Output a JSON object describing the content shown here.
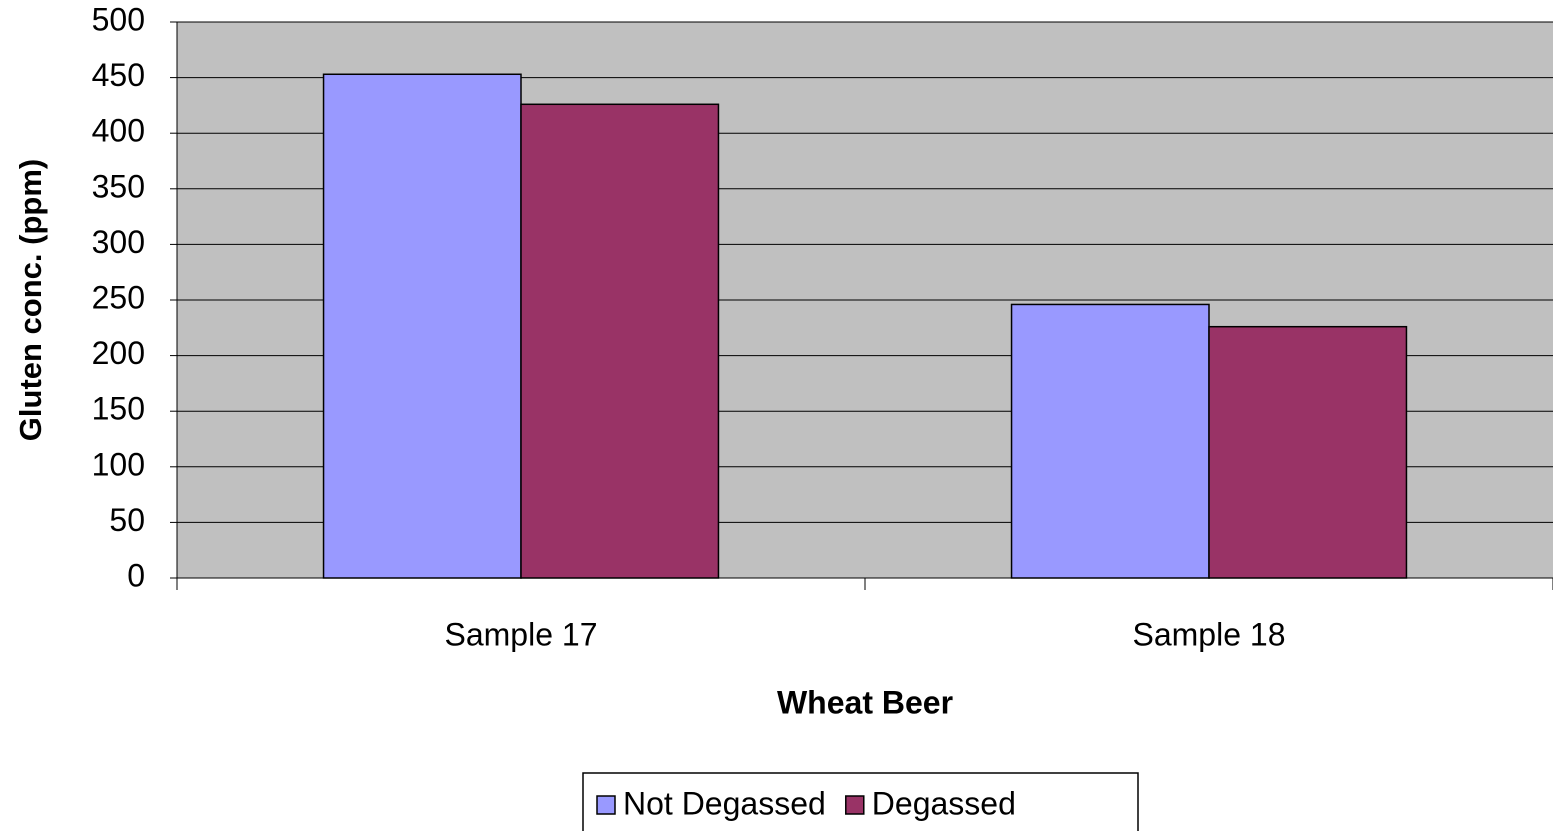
{
  "chart_data": {
    "type": "bar",
    "x_label": "Wheat Beer",
    "y_label": "Gluten conc. (ppm)",
    "categories": [
      "Sample 17",
      "Sample 18"
    ],
    "series": [
      {
        "name": "Not Degassed",
        "color": "#9999ff",
        "values": [
          453,
          246
        ]
      },
      {
        "name": "Degassed",
        "color": "#993366",
        "values": [
          426,
          226
        ]
      }
    ],
    "ylim": [
      0,
      500
    ],
    "yticks": [
      0,
      50,
      100,
      150,
      200,
      250,
      300,
      350,
      400,
      450,
      500
    ],
    "grid": true,
    "legend": "bottom"
  }
}
